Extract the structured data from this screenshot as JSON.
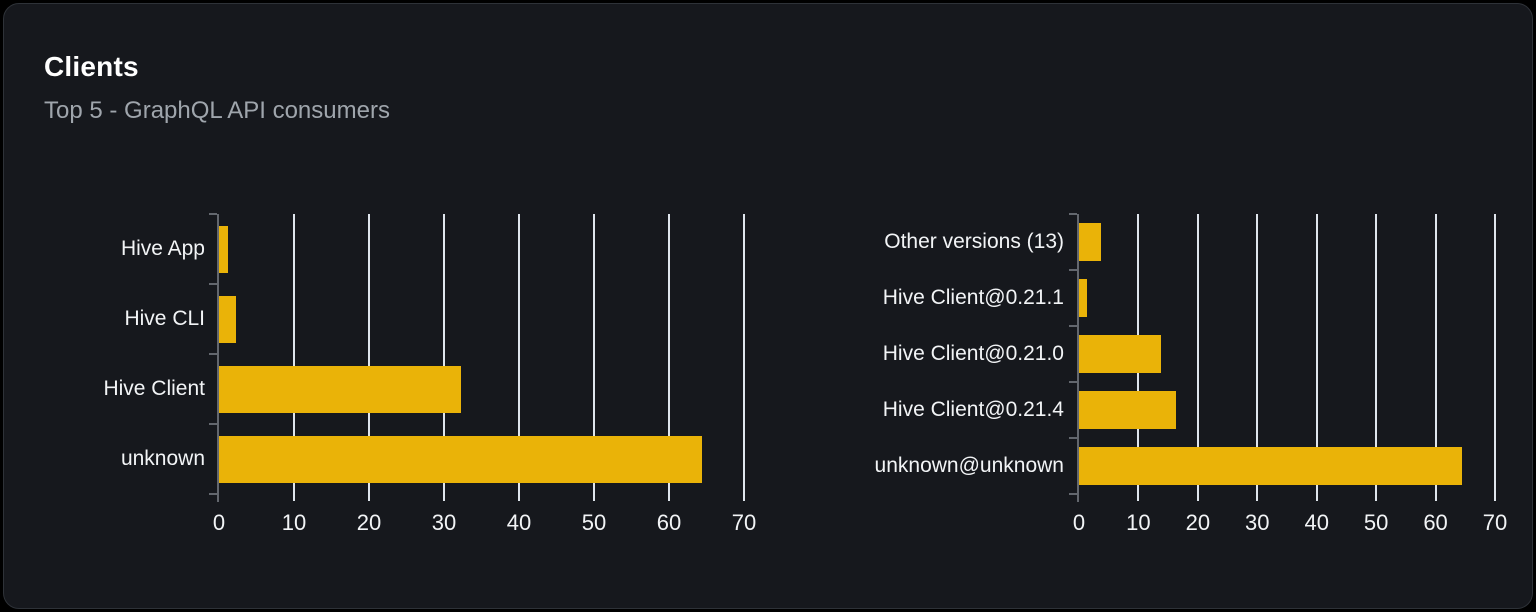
{
  "panel": {
    "title": "Clients",
    "subtitle": "Top 5 - GraphQL API consumers"
  },
  "colors": {
    "page_background": "#000000",
    "card_background": "#16181d",
    "card_border": "#2e3238",
    "title": "#ffffff",
    "subtitle": "#9fa5ac",
    "bar": "#eab308",
    "gridline": "#dfe5ec",
    "axis": "#63676e",
    "tick_label": "#f2f4f6",
    "category_label": "#f2f4f6"
  },
  "chart_data": [
    {
      "type": "bar",
      "name": "top-clients",
      "orientation": "horizontal",
      "title": "",
      "xlabel": "",
      "ylabel": "",
      "categories": [
        "Hive App",
        "Hive CLI",
        "Hive Client",
        "unknown"
      ],
      "values": [
        1.2,
        2.2,
        32.3,
        64.4
      ],
      "xlim": [
        0,
        70
      ],
      "xticks": [
        0,
        10,
        20,
        30,
        40,
        50,
        60,
        70
      ],
      "grid": true,
      "legend": false,
      "bar_color": "#eab308"
    },
    {
      "type": "bar",
      "name": "top-client-versions",
      "orientation": "horizontal",
      "title": "",
      "xlabel": "",
      "ylabel": "",
      "categories": [
        "Other versions (13)",
        "Hive Client@0.21.1",
        "Hive Client@0.21.0",
        "Hive Client@0.21.4",
        "unknown@unknown"
      ],
      "values": [
        3.7,
        1.4,
        13.8,
        16.4,
        64.5
      ],
      "xlim": [
        0,
        70
      ],
      "xticks": [
        0,
        10,
        20,
        30,
        40,
        50,
        60,
        70
      ],
      "grid": true,
      "legend": false,
      "bar_color": "#eab308"
    }
  ]
}
